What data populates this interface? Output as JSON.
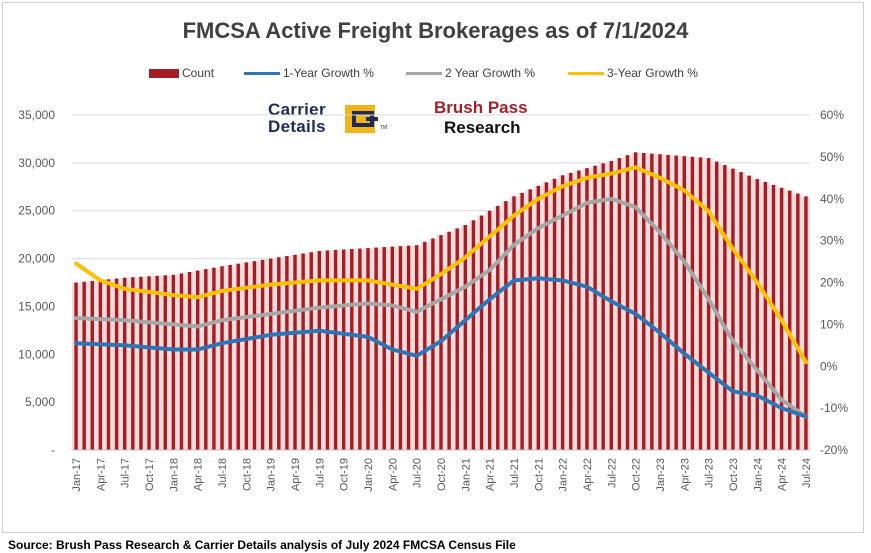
{
  "chart_data": {
    "type": "bar+line",
    "title": "FMCSA Active Freight Brokerages as of 7/1/2024",
    "source": "Source: Brush Pass Research & Carrier Details analysis of July 2024 FMCSA Census File",
    "legend": [
      "Count",
      "1-Year Growth %",
      "2 Year Growth %",
      "3-Year Growth %"
    ],
    "legend_position": "top",
    "y_left": {
      "min": 0,
      "max": 35000,
      "ticks": [
        "-",
        "5,000",
        "10,000",
        "15,000",
        "20,000",
        "25,000",
        "30,000",
        "35,000"
      ]
    },
    "y_right": {
      "min": -20,
      "max": 60,
      "ticks": [
        "-20%",
        "-10%",
        "0%",
        "10%",
        "20%",
        "30%",
        "40%",
        "50%",
        "60%"
      ]
    },
    "x_tick_labels": [
      "Jan-17",
      "Apr-17",
      "Jul-17",
      "Oct-17",
      "Jan-18",
      "Apr-18",
      "Jul-18",
      "Oct-18",
      "Jan-19",
      "Apr-19",
      "Jul-19",
      "Oct-19",
      "Jan-20",
      "Apr-20",
      "Jul-20",
      "Oct-20",
      "Jan-21",
      "Apr-21",
      "Jul-21",
      "Oct-21",
      "Jan-22",
      "Apr-22",
      "Jul-22",
      "Oct-22",
      "Jan-23",
      "Apr-23",
      "Jul-23",
      "Oct-23",
      "Jan-24",
      "Apr-24",
      "Jul-24"
    ],
    "bar_color": "#a51c24",
    "series_colors": {
      "one_year": "#2e75b6",
      "two_year": "#a6a6a6",
      "three_year": "#ffc000"
    },
    "counts": {
      "name": "Count",
      "axis": "left",
      "points": [
        [
          "2017-01",
          17500
        ],
        [
          "2017-07",
          18000
        ],
        [
          "2018-01",
          18300
        ],
        [
          "2018-07",
          19200
        ],
        [
          "2019-01",
          20000
        ],
        [
          "2019-07",
          20800
        ],
        [
          "2020-01",
          21100
        ],
        [
          "2020-07",
          21400
        ],
        [
          "2021-01",
          23500
        ],
        [
          "2021-07",
          26500
        ],
        [
          "2022-01",
          28700
        ],
        [
          "2022-07",
          30200
        ],
        [
          "2022-10",
          31100
        ],
        [
          "2023-01",
          30900
        ],
        [
          "2023-07",
          30500
        ],
        [
          "2024-01",
          28300
        ],
        [
          "2024-07",
          26500
        ]
      ]
    },
    "one_year": {
      "name": "1-Year Growth %",
      "axis": "right",
      "points": [
        [
          "2017-01",
          5.5
        ],
        [
          "2017-07",
          5
        ],
        [
          "2018-01",
          4
        ],
        [
          "2018-04",
          4
        ],
        [
          "2018-07",
          5.5
        ],
        [
          "2019-01",
          7.5
        ],
        [
          "2019-07",
          8.5
        ],
        [
          "2020-01",
          7
        ],
        [
          "2020-04",
          4
        ],
        [
          "2020-07",
          2.5
        ],
        [
          "2020-10",
          6
        ],
        [
          "2021-01",
          11
        ],
        [
          "2021-04",
          16
        ],
        [
          "2021-07",
          20.5
        ],
        [
          "2021-10",
          21
        ],
        [
          "2022-01",
          20.5
        ],
        [
          "2022-04",
          19
        ],
        [
          "2022-07",
          15.5
        ],
        [
          "2022-10",
          12.5
        ],
        [
          "2023-01",
          8
        ],
        [
          "2023-04",
          3
        ],
        [
          "2023-07",
          -1.5
        ],
        [
          "2023-10",
          -6
        ],
        [
          "2024-01",
          -7
        ],
        [
          "2024-04",
          -10
        ],
        [
          "2024-07",
          -12
        ]
      ]
    },
    "two_year": {
      "name": "2 Year Growth %",
      "axis": "right",
      "points": [
        [
          "2017-01",
          11.5
        ],
        [
          "2017-07",
          11
        ],
        [
          "2018-01",
          10
        ],
        [
          "2018-04",
          9.5
        ],
        [
          "2018-07",
          11
        ],
        [
          "2019-01",
          12.5
        ],
        [
          "2019-07",
          14
        ],
        [
          "2020-01",
          15
        ],
        [
          "2020-04",
          14.5
        ],
        [
          "2020-07",
          13
        ],
        [
          "2020-10",
          16
        ],
        [
          "2021-01",
          19
        ],
        [
          "2021-04",
          23
        ],
        [
          "2021-07",
          29
        ],
        [
          "2021-10",
          33
        ],
        [
          "2022-01",
          36
        ],
        [
          "2022-04",
          39
        ],
        [
          "2022-07",
          40
        ],
        [
          "2022-10",
          38
        ],
        [
          "2023-01",
          32
        ],
        [
          "2023-04",
          25
        ],
        [
          "2023-07",
          16
        ],
        [
          "2023-10",
          6
        ],
        [
          "2024-01",
          -1
        ],
        [
          "2024-04",
          -8
        ],
        [
          "2024-07",
          -12
        ]
      ]
    },
    "three_year": {
      "name": "3-Year Growth %",
      "axis": "right",
      "points": [
        [
          "2017-01",
          24.5
        ],
        [
          "2017-04",
          20.5
        ],
        [
          "2017-07",
          18.5
        ],
        [
          "2018-01",
          17
        ],
        [
          "2018-04",
          16.5
        ],
        [
          "2018-07",
          18
        ],
        [
          "2019-01",
          19.5
        ],
        [
          "2019-07",
          20.5
        ],
        [
          "2020-01",
          20.5
        ],
        [
          "2020-04",
          19.5
        ],
        [
          "2020-07",
          18.5
        ],
        [
          "2020-10",
          22
        ],
        [
          "2021-01",
          26
        ],
        [
          "2021-04",
          31
        ],
        [
          "2021-07",
          36
        ],
        [
          "2021-10",
          40
        ],
        [
          "2022-01",
          43
        ],
        [
          "2022-04",
          45
        ],
        [
          "2022-07",
          46
        ],
        [
          "2022-10",
          47.5
        ],
        [
          "2023-01",
          45
        ],
        [
          "2023-04",
          42
        ],
        [
          "2023-07",
          37
        ],
        [
          "2023-10",
          28
        ],
        [
          "2024-01",
          20
        ],
        [
          "2024-04",
          11
        ],
        [
          "2024-07",
          1
        ]
      ]
    }
  },
  "logos": {
    "carrier_details": {
      "line1": "Carrier",
      "line2": "Details",
      "tm": "TM"
    },
    "brush_pass": {
      "line1": "Brush Pass",
      "line2": "Research"
    }
  }
}
